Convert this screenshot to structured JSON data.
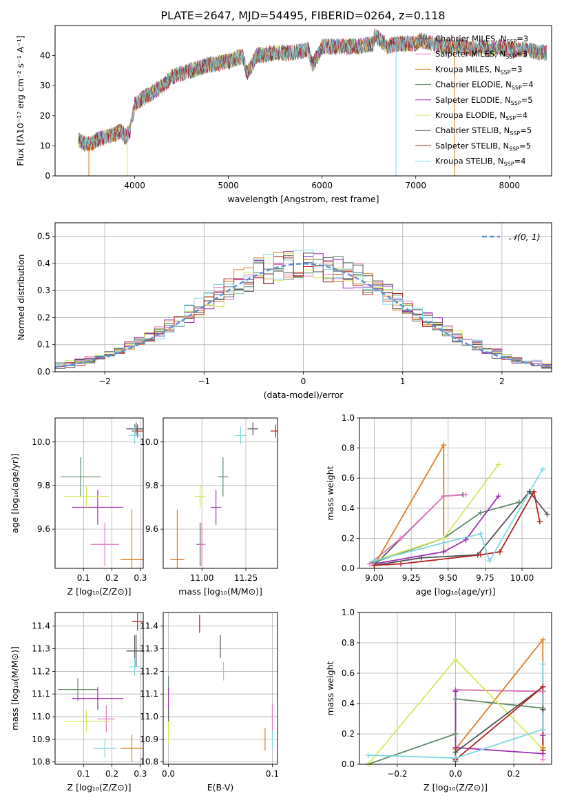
{
  "figure_title": "PLATE=2647, MJD=54495, FIBERID=0264, z=0.118",
  "models": [
    {
      "name": "Chabrier MILES",
      "nssp": "3",
      "color": "#5a5a5a"
    },
    {
      "name": "Salpeter MILES",
      "nssp": "3",
      "color": "#e377c2"
    },
    {
      "name": "Kroupa MILES",
      "nssp": "3",
      "color": "#e07b1f"
    },
    {
      "name": "Chabrier ELODIE",
      "nssp": "4",
      "color": "#5f8a6a"
    },
    {
      "name": "Salpeter ELODIE",
      "nssp": "5",
      "color": "#9b30b0"
    },
    {
      "name": "Kroupa ELODIE",
      "nssp": "4",
      "color": "#d4e85a"
    },
    {
      "name": "Chabrier STELIB",
      "nssp": "5",
      "color": "#505050"
    },
    {
      "name": "Salpeter STELIB",
      "nssp": "5",
      "color": "#b22222"
    },
    {
      "name": "Kroupa STELIB",
      "nssp": "4",
      "color": "#7fd6e0"
    }
  ],
  "legend_nssp_prefix": "N",
  "legend_nssp_sub": "SSP",
  "chart_data": [
    {
      "id": "spectrum",
      "type": "line",
      "xlabel": "wavelength [Angstrom, rest frame]",
      "ylabel": "Flux [fλ10⁻¹⁷ erg cm⁻² s⁻¹ A⁻¹]",
      "xlim": [
        3150,
        8450
      ],
      "ylim": [
        0,
        50
      ],
      "xticks": [
        4000,
        5000,
        6000,
        7000,
        8000
      ],
      "yticks": [
        0,
        10,
        20,
        30,
        40
      ],
      "x": [
        3400,
        3450,
        3500,
        3550,
        3600,
        3700,
        3800,
        3850,
        3900,
        3950,
        4000,
        4100,
        4200,
        4300,
        4400,
        4500,
        4600,
        4800,
        5000,
        5150,
        5200,
        5300,
        5500,
        5700,
        5850,
        5900,
        6000,
        6200,
        6400,
        6550,
        6560,
        6700,
        6800,
        6900,
        7000,
        7050,
        7200,
        7300,
        7400,
        7500,
        7600,
        7700,
        7800,
        7900,
        8000,
        8100,
        8200,
        8300,
        8400
      ],
      "y": [
        12,
        11,
        10.5,
        11,
        12,
        13,
        14,
        15,
        13,
        15,
        24,
        26,
        28,
        30,
        33,
        34,
        35,
        37,
        38,
        40,
        34,
        40,
        41,
        41,
        42,
        37,
        43,
        43,
        43,
        44,
        47,
        43,
        44,
        44,
        44,
        45,
        44,
        43,
        43,
        43,
        42,
        43,
        42,
        43,
        42,
        42,
        42,
        41,
        41
      ],
      "gaps": [
        {
          "x": 3510,
          "y": 0
        },
        {
          "x": 3920,
          "y": 0
        },
        {
          "x": 6790,
          "y": 0
        },
        {
          "x": 7415,
          "y": 0
        }
      ]
    },
    {
      "id": "residuals",
      "type": "histogram",
      "xlabel": "(data-model)/error",
      "ylabel": "Normed distribution",
      "xlim": [
        -2.5,
        2.5
      ],
      "ylim": [
        0,
        0.55
      ],
      "xticks": [
        -2,
        -1,
        0,
        1,
        2
      ],
      "yticks": [
        0.0,
        0.1,
        0.2,
        0.3,
        0.4,
        0.5
      ],
      "legend": "𝒩(0, 1)",
      "bin_width": 0.1
    },
    {
      "id": "age_vs_Z",
      "type": "errorbar",
      "xlabel": "Z [log₁₀(Z/Z⊙)]",
      "ylabel": "age  [log₁₀(age/yr)]",
      "xlim": [
        0.0,
        0.31
      ],
      "ylim": [
        9.42,
        10.11
      ],
      "xticks": [
        0.1,
        0.2,
        0.3
      ],
      "yticks": [
        9.6,
        9.8,
        10.0
      ],
      "points": [
        {
          "m": 0,
          "x": 0.28,
          "y": 10.06,
          "xe": 0.03,
          "ye": 0.02
        },
        {
          "m": 1,
          "x": 0.175,
          "y": 9.53,
          "xe": 0.05,
          "ye": 0.1
        },
        {
          "m": 2,
          "x": 0.27,
          "y": 9.46,
          "xe": 0.04,
          "ye": 0.23
        },
        {
          "m": 3,
          "x": 0.09,
          "y": 9.84,
          "xe": 0.07,
          "ye": 0.09
        },
        {
          "m": 4,
          "x": 0.15,
          "y": 9.7,
          "xe": 0.09,
          "ye": 0.08
        },
        {
          "m": 5,
          "x": 0.11,
          "y": 9.75,
          "xe": 0.08,
          "ye": 0.05
        },
        {
          "m": 6,
          "x": 0.285,
          "y": 10.06,
          "xe": 0.03,
          "ye": 0.03
        },
        {
          "m": 7,
          "x": 0.29,
          "y": 10.05,
          "xe": 0.02,
          "ye": 0.03
        },
        {
          "m": 8,
          "x": 0.28,
          "y": 10.03,
          "xe": 0.02,
          "ye": 0.04
        }
      ]
    },
    {
      "id": "age_vs_mass",
      "type": "errorbar",
      "xlabel": "mass [log₁₀(M/M⊙)]",
      "ylabel": "",
      "xlim": [
        10.78,
        11.43
      ],
      "ylim": [
        9.42,
        10.11
      ],
      "xticks": [
        11.0,
        11.25
      ],
      "yticks": [
        9.6,
        9.8,
        10.0
      ],
      "points": [
        {
          "m": 0,
          "x": 10.99,
          "y": 9.53,
          "xe": 0.02,
          "ye": 0.1
        },
        {
          "m": 1,
          "x": 11.0,
          "y": 9.53,
          "xe": 0.02,
          "ye": 0.1
        },
        {
          "m": 2,
          "x": 10.86,
          "y": 9.46,
          "xe": 0.04,
          "ye": 0.23
        },
        {
          "m": 3,
          "x": 11.12,
          "y": 9.84,
          "xe": 0.03,
          "ye": 0.09
        },
        {
          "m": 4,
          "x": 11.08,
          "y": 9.7,
          "xe": 0.03,
          "ye": 0.08
        },
        {
          "m": 5,
          "x": 10.99,
          "y": 9.75,
          "xe": 0.03,
          "ye": 0.05
        },
        {
          "m": 6,
          "x": 11.29,
          "y": 10.06,
          "xe": 0.03,
          "ye": 0.03
        },
        {
          "m": 7,
          "x": 11.42,
          "y": 10.05,
          "xe": 0.03,
          "ye": 0.03
        },
        {
          "m": 8,
          "x": 11.22,
          "y": 10.03,
          "xe": 0.03,
          "ye": 0.04
        }
      ]
    },
    {
      "id": "weight_vs_age",
      "type": "line",
      "xlabel": "age  [log₁₀(age/yr)]",
      "ylabel": "mass weight",
      "xlim": [
        8.9,
        10.2
      ],
      "ylim": [
        0,
        1
      ],
      "xticks": [
        9.0,
        9.25,
        9.5,
        9.75,
        10.0
      ],
      "yticks": [
        0.0,
        0.2,
        0.4,
        0.6,
        0.8,
        1.0
      ],
      "series": [
        {
          "m": 0,
          "x": [
            9.0,
            9.47,
            9.6
          ],
          "y": [
            0.02,
            0.48,
            0.49
          ]
        },
        {
          "m": 1,
          "x": [
            8.97,
            9.18,
            9.47,
            9.62
          ],
          "y": [
            0.03,
            0.2,
            0.48,
            0.49
          ]
        },
        {
          "m": 2,
          "x": [
            9.0,
            9.47,
            9.47
          ],
          "y": [
            0.02,
            0.82,
            0.11
          ]
        },
        {
          "m": 3,
          "x": [
            9.0,
            9.47,
            9.72,
            9.98
          ],
          "y": [
            0.04,
            0.2,
            0.37,
            0.44
          ]
        },
        {
          "m": 4,
          "x": [
            9.0,
            9.47,
            9.62,
            9.84
          ],
          "y": [
            0.03,
            0.11,
            0.19,
            0.48
          ]
        },
        {
          "m": 5,
          "x": [
            9.0,
            9.47,
            9.84
          ],
          "y": [
            0.05,
            0.2,
            0.69
          ]
        },
        {
          "m": 6,
          "x": [
            9.0,
            9.32,
            9.7,
            10.05,
            10.17
          ],
          "y": [
            0.02,
            0.07,
            0.09,
            0.51,
            0.36
          ]
        },
        {
          "m": 7,
          "x": [
            9.0,
            9.18,
            9.72,
            9.85,
            10.08,
            10.12
          ],
          "y": [
            0.02,
            0.03,
            0.09,
            0.11,
            0.51,
            0.31
          ]
        },
        {
          "m": 8,
          "x": [
            9.0,
            9.47,
            9.72,
            9.78,
            10.14
          ],
          "y": [
            0.05,
            0.17,
            0.23,
            0.05,
            0.66
          ]
        }
      ]
    },
    {
      "id": "mass_vs_Z",
      "type": "errorbar",
      "xlabel": "Z [log₁₀(Z/Z⊙)]",
      "ylabel": "mass [log₁₀(M/M⊙)]",
      "xlim": [
        0.0,
        0.31
      ],
      "ylim": [
        10.79,
        11.46
      ],
      "xticks": [
        0.1,
        0.2,
        0.3
      ],
      "yticks": [
        10.8,
        10.9,
        11.0,
        11.1,
        11.2,
        11.3,
        11.4
      ],
      "points": [
        {
          "m": 0,
          "x": 0.28,
          "y": 11.29,
          "xe": 0.03,
          "ye": 0.07
        },
        {
          "m": 1,
          "x": 0.18,
          "y": 10.99,
          "xe": 0.03,
          "ye": 0.06
        },
        {
          "m": 2,
          "x": 0.27,
          "y": 10.86,
          "xe": 0.04,
          "ye": 0.06
        },
        {
          "m": 3,
          "x": 0.08,
          "y": 11.12,
          "xe": 0.07,
          "ye": 0.05
        },
        {
          "m": 4,
          "x": 0.15,
          "y": 11.08,
          "xe": 0.09,
          "ye": 0.05
        },
        {
          "m": 5,
          "x": 0.11,
          "y": 10.98,
          "xe": 0.08,
          "ye": 0.05
        },
        {
          "m": 6,
          "x": 0.285,
          "y": 11.29,
          "xe": 0.03,
          "ye": 0.07
        },
        {
          "m": 7,
          "x": 0.29,
          "y": 11.42,
          "xe": 0.02,
          "ye": 0.04
        },
        {
          "m": 8,
          "x": 0.28,
          "y": 11.22,
          "xe": 0.02,
          "ye": 0.04
        },
        {
          "m": 8,
          "x": 0.175,
          "y": 10.86,
          "xe": 0.04,
          "ye": 0.04
        }
      ]
    },
    {
      "id": "mass_vs_ebv",
      "type": "errorbar",
      "xlabel": "E(B-V)",
      "ylabel": "",
      "xlim": [
        -0.005,
        0.105
      ],
      "ylim": [
        10.79,
        11.46
      ],
      "xticks": [
        0.0,
        0.1
      ],
      "yticks": [
        10.8,
        10.9,
        11.0,
        11.1,
        11.2,
        11.3,
        11.4
      ],
      "points": [
        {
          "m": 0,
          "x": 0.0,
          "y": 11.0,
          "xe": 0,
          "ye": 0.05
        },
        {
          "m": 1,
          "x": 0.1,
          "y": 11.0,
          "xe": 0,
          "ye": 0.06
        },
        {
          "m": 2,
          "x": 0.093,
          "y": 10.9,
          "xe": 0,
          "ye": 0.05
        },
        {
          "m": 3,
          "x": 0.0,
          "y": 11.13,
          "xe": 0,
          "ye": 0.05
        },
        {
          "m": 4,
          "x": 0.0,
          "y": 11.08,
          "xe": 0,
          "ye": 0.05
        },
        {
          "m": 5,
          "x": 0.0,
          "y": 10.93,
          "xe": 0,
          "ye": 0.05
        },
        {
          "m": 6,
          "x": 0.05,
          "y": 11.31,
          "xe": 0,
          "ye": 0.05
        },
        {
          "m": 7,
          "x": 0.03,
          "y": 11.41,
          "xe": 0,
          "ye": 0.04
        },
        {
          "m": 8,
          "x": 0.053,
          "y": 11.2,
          "xe": 0,
          "ye": 0.04
        },
        {
          "m": 8,
          "x": 0.1,
          "y": 10.9,
          "xe": 0,
          "ye": 0.04
        }
      ]
    },
    {
      "id": "weight_vs_Z",
      "type": "line",
      "xlabel": "Z [log₁₀(Z/Z⊙)]",
      "ylabel": "mass weight",
      "xlim": [
        -0.33,
        0.33
      ],
      "ylim": [
        0,
        1
      ],
      "xticks": [
        -0.2,
        0.0,
        0.2
      ],
      "yticks": [
        0.0,
        0.2,
        0.4,
        0.6,
        0.8,
        1.0
      ],
      "series": [
        {
          "m": 0,
          "x": [
            0.0,
            0.0,
            0.3
          ],
          "y": [
            0.02,
            0.49,
            0.48
          ]
        },
        {
          "m": 1,
          "x": [
            0.0,
            0.3,
            0.3
          ],
          "y": [
            0.49,
            0.48,
            0.03
          ]
        },
        {
          "m": 2,
          "x": [
            0.0,
            0.3,
            0.3
          ],
          "y": [
            0.1,
            0.82,
            0.11
          ]
        },
        {
          "m": 3,
          "x": [
            -0.3,
            0.0,
            0.0,
            0.3
          ],
          "y": [
            0.0,
            0.2,
            0.43,
            0.37
          ]
        },
        {
          "m": 4,
          "x": [
            0.0,
            0.0,
            0.3,
            0.3
          ],
          "y": [
            0.48,
            0.11,
            0.07,
            0.19
          ]
        },
        {
          "m": 5,
          "x": [
            -0.3,
            0.0,
            0.3
          ],
          "y": [
            0.0,
            0.69,
            0.1
          ]
        },
        {
          "m": 6,
          "x": [
            0.0,
            0.0,
            0.3,
            0.3
          ],
          "y": [
            0.03,
            0.08,
            0.51,
            0.36
          ]
        },
        {
          "m": 7,
          "x": [
            0.0,
            0.3,
            0.3
          ],
          "y": [
            0.03,
            0.51,
            0.09
          ]
        },
        {
          "m": 8,
          "x": [
            -0.3,
            0.0,
            0.3,
            0.3
          ],
          "y": [
            0.06,
            0.04,
            0.23,
            0.66
          ]
        }
      ]
    }
  ]
}
